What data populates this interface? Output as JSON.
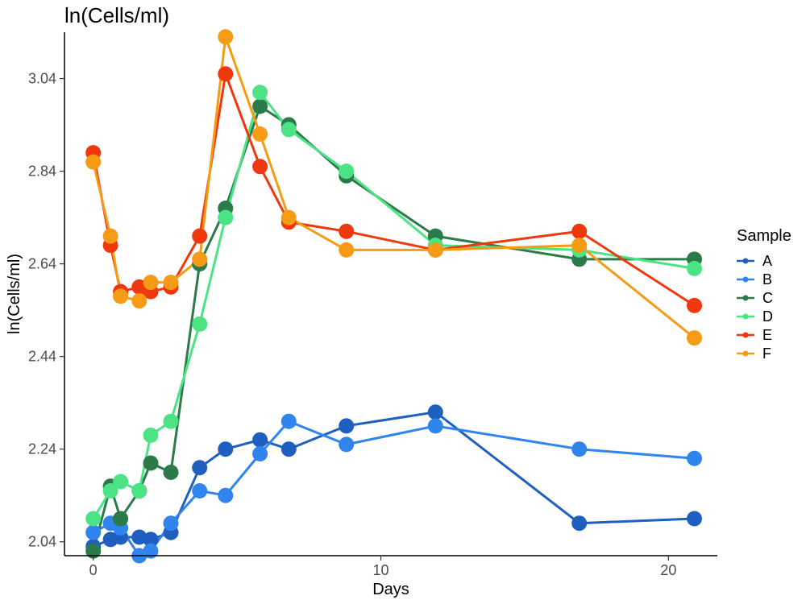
{
  "chart_data": {
    "type": "line",
    "title": "ln(Cells/ml)",
    "xlabel": "Days",
    "ylabel": "ln(Cells/ml)",
    "xlim": [
      -1,
      21.7
    ],
    "ylim": [
      2.01,
      3.14
    ],
    "xticks": [
      0,
      10,
      20
    ],
    "xtick_labels": [
      "0",
      "10",
      "20"
    ],
    "yticks": [
      2.04,
      2.24,
      2.44,
      2.64,
      2.84,
      3.04
    ],
    "ytick_labels": [
      "2.04",
      "2.24",
      "2.44",
      "2.64",
      "2.84",
      "3.04"
    ],
    "grid": false,
    "legend_title": "Sample",
    "legend_position": "right",
    "series": [
      {
        "name": "A",
        "color": "#1f5fbf",
        "x": [
          0,
          0.6,
          0.95,
          1.6,
          2.0,
          2.7,
          3.7,
          4.6,
          5.8,
          6.8,
          8.8,
          11.9,
          16.9,
          20.9
        ],
        "y": [
          2.03,
          2.045,
          2.05,
          2.05,
          2.045,
          2.06,
          2.2,
          2.24,
          2.26,
          2.24,
          2.29,
          2.32,
          2.08,
          2.09
        ]
      },
      {
        "name": "B",
        "color": "#2f84ee",
        "x": [
          0,
          0.6,
          0.95,
          1.6,
          2.0,
          2.7,
          3.7,
          4.6,
          5.8,
          6.8,
          8.8,
          11.9,
          16.9,
          20.9
        ],
        "y": [
          2.06,
          2.08,
          2.07,
          2.01,
          2.02,
          2.08,
          2.15,
          2.14,
          2.23,
          2.3,
          2.25,
          2.29,
          2.24,
          2.22
        ]
      },
      {
        "name": "C",
        "color": "#2a7a4a",
        "x": [
          0,
          0.6,
          0.95,
          1.6,
          2.0,
          2.7,
          3.7,
          4.6,
          5.8,
          6.8,
          8.8,
          11.9,
          16.9,
          20.9
        ],
        "y": [
          2.02,
          2.16,
          2.09,
          2.15,
          2.21,
          2.19,
          2.64,
          2.76,
          2.98,
          2.94,
          2.83,
          2.7,
          2.65,
          2.65
        ]
      },
      {
        "name": "D",
        "color": "#4be384",
        "x": [
          0,
          0.6,
          0.95,
          1.6,
          2.0,
          2.7,
          3.7,
          4.6,
          5.8,
          6.8,
          8.8,
          11.9,
          16.9,
          20.9
        ],
        "y": [
          2.09,
          2.15,
          2.17,
          2.15,
          2.27,
          2.3,
          2.51,
          2.74,
          3.01,
          2.93,
          2.84,
          2.68,
          2.67,
          2.63
        ]
      },
      {
        "name": "E",
        "color": "#f0380f",
        "x": [
          0,
          0.6,
          0.95,
          1.6,
          2.0,
          2.7,
          3.7,
          4.6,
          5.8,
          6.8,
          8.8,
          11.9,
          16.9,
          20.9
        ],
        "y": [
          2.88,
          2.68,
          2.58,
          2.59,
          2.58,
          2.59,
          2.7,
          3.05,
          2.85,
          2.73,
          2.71,
          2.67,
          2.71,
          2.55
        ]
      },
      {
        "name": "F",
        "color": "#f59b16",
        "x": [
          0,
          0.6,
          0.95,
          1.6,
          2.0,
          2.7,
          3.7,
          4.6,
          5.8,
          6.8,
          8.8,
          11.9,
          16.9,
          20.9
        ],
        "y": [
          2.86,
          2.7,
          2.57,
          2.56,
          2.6,
          2.6,
          2.65,
          3.13,
          2.92,
          2.74,
          2.67,
          2.67,
          2.68,
          2.48
        ]
      }
    ]
  }
}
